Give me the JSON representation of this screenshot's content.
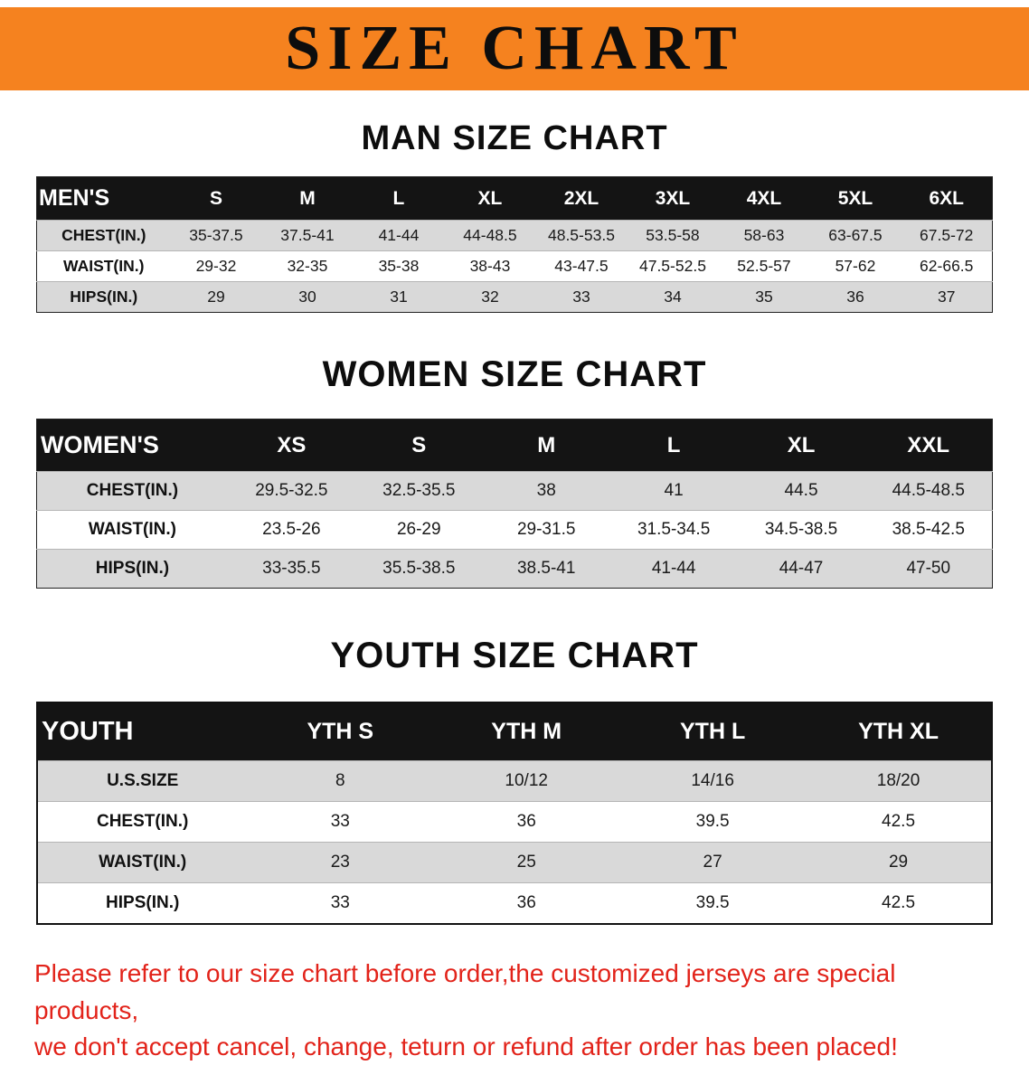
{
  "banner": {
    "title": "SIZE CHART"
  },
  "sections": [
    {
      "heading": "MAN SIZE CHART",
      "table": {
        "header": [
          "MEN'S",
          "S",
          "M",
          "L",
          "XL",
          "2XL",
          "3XL",
          "4XL",
          "5XL",
          "6XL"
        ],
        "rows": [
          [
            "CHEST(IN.)",
            "35-37.5",
            "37.5-41",
            "41-44",
            "44-48.5",
            "48.5-53.5",
            "53.5-58",
            "58-63",
            "63-67.5",
            "67.5-72"
          ],
          [
            "WAIST(IN.)",
            "29-32",
            "32-35",
            "35-38",
            "38-43",
            "43-47.5",
            "47.5-52.5",
            "52.5-57",
            "57-62",
            "62-66.5"
          ],
          [
            "HIPS(IN.)",
            "29",
            "30",
            "31",
            "32",
            "33",
            "34",
            "35",
            "36",
            "37"
          ]
        ]
      }
    },
    {
      "heading": "WOMEN SIZE CHART",
      "table": {
        "header": [
          "WOMEN'S",
          "XS",
          "S",
          "M",
          "L",
          "XL",
          "XXL"
        ],
        "rows": [
          [
            "CHEST(IN.)",
            "29.5-32.5",
            "32.5-35.5",
            "38",
            "41",
            "44.5",
            "44.5-48.5"
          ],
          [
            "WAIST(IN.)",
            "23.5-26",
            "26-29",
            "29-31.5",
            "31.5-34.5",
            "34.5-38.5",
            "38.5-42.5"
          ],
          [
            "HIPS(IN.)",
            "33-35.5",
            "35.5-38.5",
            "38.5-41",
            "41-44",
            "44-47",
            "47-50"
          ]
        ]
      }
    },
    {
      "heading": "YOUTH SIZE CHART",
      "table": {
        "header": [
          "YOUTH",
          "YTH S",
          "YTH M",
          "YTH L",
          "YTH XL"
        ],
        "rows": [
          [
            "U.S.SIZE",
            "8",
            "10/12",
            "14/16",
            "18/20"
          ],
          [
            "CHEST(IN.)",
            "33",
            "36",
            "39.5",
            "42.5"
          ],
          [
            "WAIST(IN.)",
            "23",
            "25",
            "27",
            "29"
          ],
          [
            "HIPS(IN.)",
            "33",
            "36",
            "39.5",
            "42.5"
          ]
        ]
      }
    }
  ],
  "footer": {
    "line1": "Please refer to our size chart before order,the customized jerseys are special products,",
    "line2": "we don't accept cancel, change, teturn or refund after order has been placed!"
  },
  "colors": {
    "banner_bg": "#f5821f",
    "table_header_bg": "#141414",
    "row_stripe": "#d9d9d9",
    "note_red": "#e2231a"
  }
}
